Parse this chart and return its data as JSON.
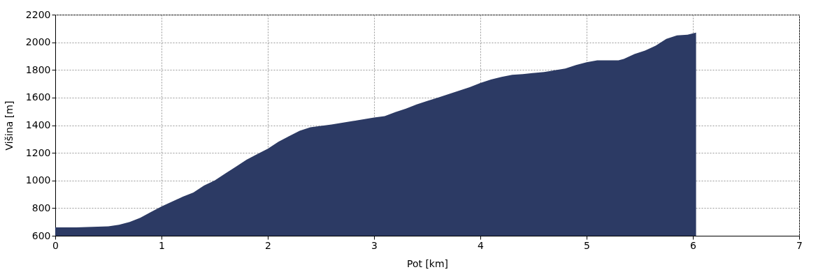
{
  "chart_data": {
    "type": "area",
    "xlabel": "Pot [km]",
    "ylabel": "Višina [m]",
    "x": [
      0,
      0.2,
      0.4,
      0.5,
      0.6,
      0.7,
      0.8,
      0.9,
      1.0,
      1.1,
      1.2,
      1.3,
      1.4,
      1.5,
      1.6,
      1.7,
      1.8,
      1.9,
      2.0,
      2.1,
      2.2,
      2.3,
      2.4,
      2.5,
      2.6,
      2.8,
      3.0,
      3.1,
      3.2,
      3.3,
      3.4,
      3.5,
      3.6,
      3.7,
      3.8,
      3.9,
      4.0,
      4.1,
      4.2,
      4.3,
      4.4,
      4.6,
      4.8,
      4.9,
      5.0,
      5.1,
      5.3,
      5.35,
      5.45,
      5.55,
      5.65,
      5.75,
      5.85,
      5.95,
      6.03
    ],
    "series": [
      {
        "color": "#2c3a64",
        "values": [
          660,
          660,
          665,
          668,
          680,
          700,
          730,
          772,
          812,
          847,
          883,
          913,
          964,
          1000,
          1050,
          1100,
          1150,
          1190,
          1230,
          1280,
          1320,
          1360,
          1385,
          1395,
          1405,
          1430,
          1455,
          1465,
          1495,
          1520,
          1550,
          1575,
          1600,
          1625,
          1650,
          1675,
          1705,
          1730,
          1750,
          1765,
          1770,
          1785,
          1810,
          1835,
          1855,
          1870,
          1870,
          1880,
          1915,
          1940,
          1975,
          2025,
          2050,
          2055,
          2070
        ]
      }
    ],
    "xlim": [
      0,
      7
    ],
    "xticks": [
      0,
      1,
      2,
      3,
      4,
      5,
      6,
      7
    ],
    "ylim": [
      600,
      2200
    ],
    "yticks": [
      600,
      800,
      1000,
      1200,
      1400,
      1600,
      1800,
      2000,
      2200
    ],
    "grid": true
  }
}
